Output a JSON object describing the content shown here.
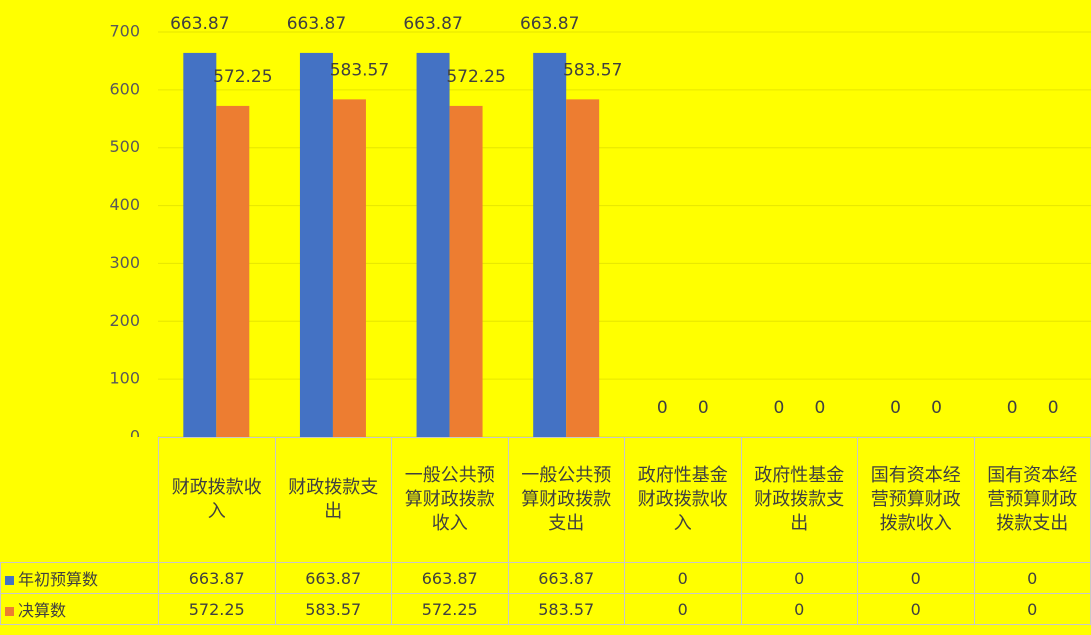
{
  "chart_data": {
    "type": "bar",
    "categories": [
      "财政拨款收入",
      "财政拨款支出",
      "一般公共预算财政拨款收入",
      "一般公共预算财政拨款支出",
      "政府性基金财政拨款收入",
      "政府性基金财政拨款支出",
      "国有资本经营预算财政拨款收入",
      "国有资本经营预算财政拨款支出"
    ],
    "series": [
      {
        "name": "年初预算数",
        "color": "#4472c4",
        "values": [
          663.87,
          663.87,
          663.87,
          663.87,
          0,
          0,
          0,
          0
        ]
      },
      {
        "name": "决算数",
        "color": "#ed7d31",
        "values": [
          572.25,
          583.57,
          572.25,
          583.57,
          0,
          0,
          0,
          0
        ]
      }
    ],
    "ylim": [
      0,
      700
    ],
    "yticks": [
      0,
      100,
      200,
      300,
      400,
      500,
      600,
      700
    ],
    "grid": true
  }
}
